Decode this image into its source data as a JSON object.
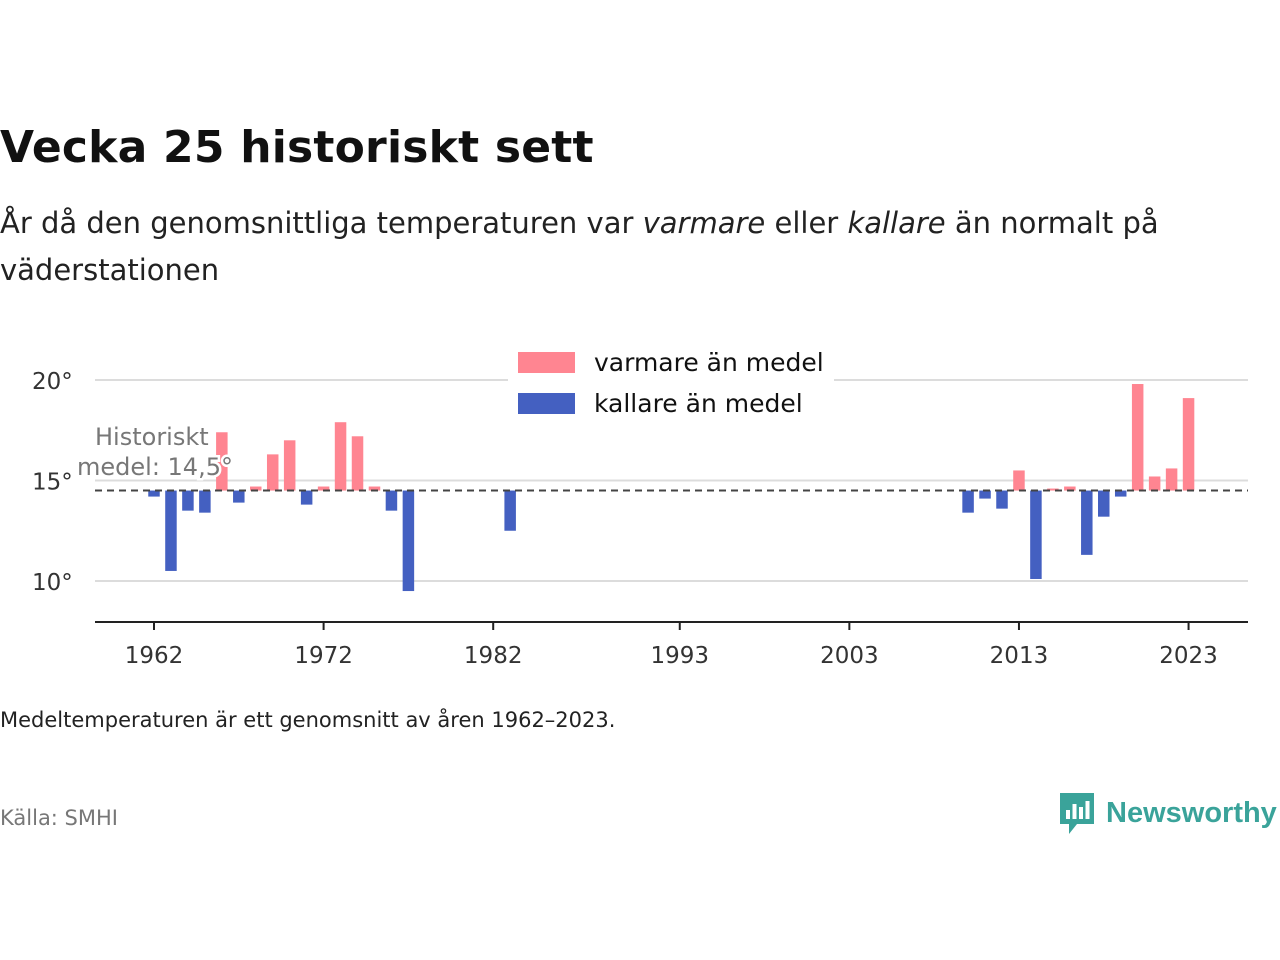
{
  "header": {
    "title": "Vecka 25 historiskt sett",
    "subtitle_part1": "År då den genomsnittliga temperaturen var ",
    "subtitle_em1": "varmare",
    "subtitle_part2": " eller ",
    "subtitle_em2": "kallare",
    "subtitle_part3": " än normalt på väderstationen"
  },
  "footer": {
    "note": "Medeltemperaturen är ett genomsnitt av åren 1962–2023.",
    "source": "Källa: SMHI",
    "brand": "Newsworthy"
  },
  "colors": {
    "warm": "#ff8591",
    "cold": "#4460c1",
    "brand": "#3aa39a"
  },
  "chart_data": {
    "type": "bar",
    "baseline": 14.5,
    "ylim": [
      8,
      22
    ],
    "yticks": [
      10,
      15,
      20
    ],
    "ytick_labels": [
      "10°",
      "15°",
      "20°"
    ],
    "xticks": [
      1962,
      1972,
      1982,
      1993,
      2003,
      2013,
      2023
    ],
    "xlim": [
      1958.5,
      2026.5
    ],
    "grid": true,
    "legend_position": "top",
    "mean_annotation": [
      "Historiskt",
      "medel: 14,5°"
    ],
    "series": [
      {
        "name": "varmare än medel",
        "color": "#ff8591"
      },
      {
        "name": "kallare än medel",
        "color": "#4460c1"
      }
    ],
    "points": [
      {
        "year": 1962,
        "value": 14.2
      },
      {
        "year": 1963,
        "value": 10.5
      },
      {
        "year": 1964,
        "value": 13.5
      },
      {
        "year": 1965,
        "value": 13.4
      },
      {
        "year": 1966,
        "value": 17.4
      },
      {
        "year": 1967,
        "value": 13.9
      },
      {
        "year": 1968,
        "value": 14.7
      },
      {
        "year": 1969,
        "value": 16.3
      },
      {
        "year": 1970,
        "value": 17.0
      },
      {
        "year": 1971,
        "value": 13.8
      },
      {
        "year": 1972,
        "value": 14.7
      },
      {
        "year": 1973,
        "value": 17.9
      },
      {
        "year": 1974,
        "value": 17.2
      },
      {
        "year": 1975,
        "value": 14.7
      },
      {
        "year": 1976,
        "value": 13.5
      },
      {
        "year": 1977,
        "value": 9.5
      },
      {
        "year": 1983,
        "value": 12.5
      },
      {
        "year": 2010,
        "value": 13.4
      },
      {
        "year": 2011,
        "value": 14.1
      },
      {
        "year": 2012,
        "value": 13.6
      },
      {
        "year": 2013,
        "value": 15.5
      },
      {
        "year": 2014,
        "value": 10.1
      },
      {
        "year": 2015,
        "value": 14.6
      },
      {
        "year": 2016,
        "value": 14.7
      },
      {
        "year": 2017,
        "value": 11.3
      },
      {
        "year": 2018,
        "value": 13.2
      },
      {
        "year": 2019,
        "value": 14.2
      },
      {
        "year": 2020,
        "value": 19.8
      },
      {
        "year": 2021,
        "value": 15.2
      },
      {
        "year": 2022,
        "value": 15.6
      },
      {
        "year": 2023,
        "value": 19.1
      }
    ]
  }
}
